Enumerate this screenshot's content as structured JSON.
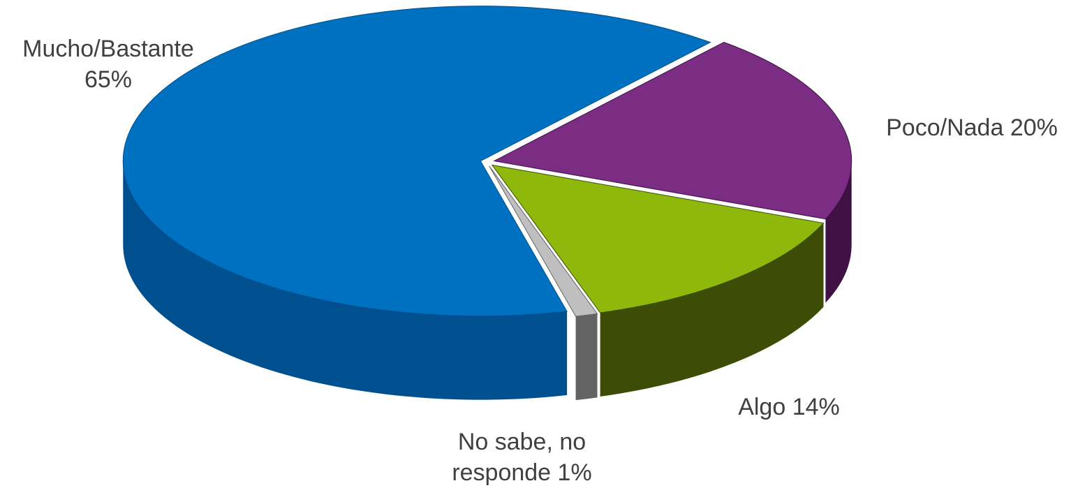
{
  "chart_data": {
    "type": "pie",
    "three_d": true,
    "categories": [
      "Mucho/Bastante",
      "Poco/Nada",
      "Algo",
      "No sabe, no responde"
    ],
    "values": [
      65,
      20,
      14,
      1
    ],
    "value_labels": [
      "65%",
      "20%",
      "14%",
      "1%"
    ],
    "colors": [
      "#0070c0",
      "#7b2c83",
      "#8fb80c",
      "#bfbfbf"
    ],
    "side_colors": [
      "#00508f",
      "#3f1145",
      "#3d4d05",
      "#636363"
    ]
  }
}
